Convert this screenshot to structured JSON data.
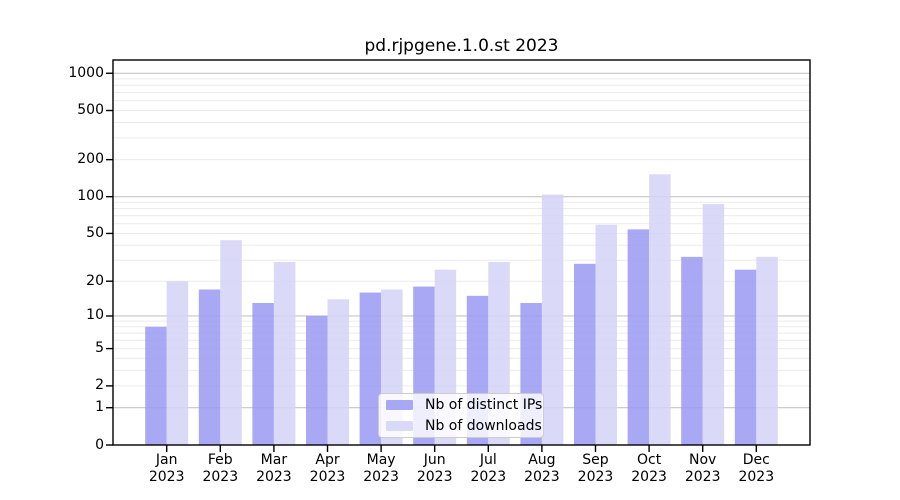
{
  "chart_data": {
    "type": "bar",
    "title": "pd.rjpgene.1.0.st 2023",
    "scale": "log1p",
    "grid": "major-and-minor",
    "legend_position": "inside-bottom-center",
    "xlabel": "",
    "ylabel": "",
    "year": "2023",
    "categories": [
      "Jan",
      "Feb",
      "Mar",
      "Apr",
      "May",
      "Jun",
      "Jul",
      "Aug",
      "Sep",
      "Oct",
      "Nov",
      "Dec"
    ],
    "yticks": [
      0,
      1,
      2,
      5,
      10,
      20,
      50,
      100,
      200,
      500,
      1000
    ],
    "ylim": [
      0,
      1280
    ],
    "series": [
      {
        "name": "Nb of distinct IPs",
        "color": "#9999f3",
        "values": [
          8,
          17,
          13,
          10,
          16,
          18,
          15,
          13,
          28,
          54,
          32,
          25
        ]
      },
      {
        "name": "Nb of downloads",
        "color": "#d4d4f7",
        "values": [
          20,
          44,
          29,
          14,
          17,
          25,
          29,
          104,
          59,
          152,
          87,
          32
        ]
      }
    ],
    "colors": {
      "major_grid": "#c6c6c6",
      "minor_grid": "#ececec",
      "axis": "#000000"
    }
  }
}
